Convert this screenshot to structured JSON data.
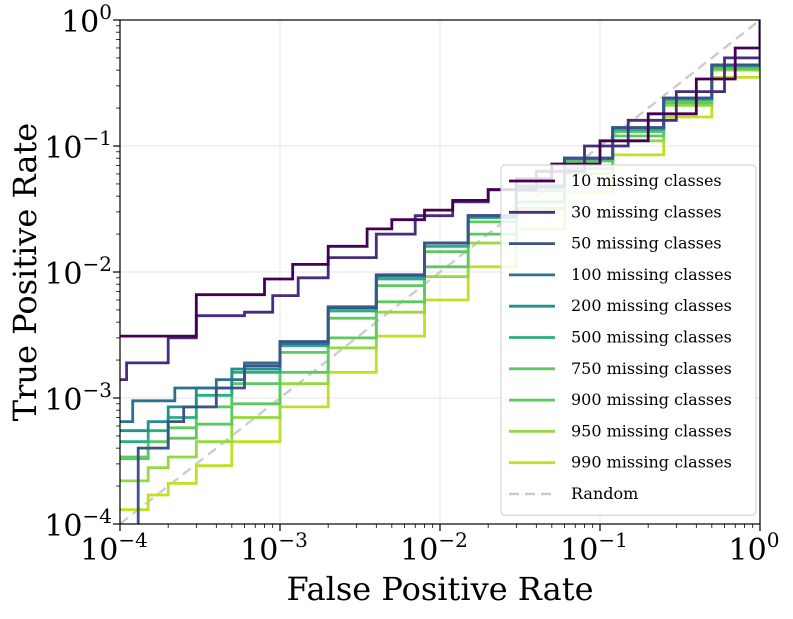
{
  "chart_data": {
    "type": "line",
    "xlabel": "False Positive Rate",
    "ylabel": "True Positive Rate",
    "xscale": "log",
    "yscale": "log",
    "xlim": [
      0.0001,
      1
    ],
    "ylim": [
      0.0001,
      1
    ],
    "grid": true,
    "legend_position": "right",
    "x_ticks": [
      {
        "base": "10",
        "exp": "−4",
        "value": 0.0001
      },
      {
        "base": "10",
        "exp": "−3",
        "value": 0.001
      },
      {
        "base": "10",
        "exp": "−2",
        "value": 0.01
      },
      {
        "base": "10",
        "exp": "−1",
        "value": 0.1
      },
      {
        "base": "10",
        "exp": "0",
        "value": 1
      }
    ],
    "y_ticks": [
      {
        "base": "10",
        "exp": "−4",
        "value": 0.0001
      },
      {
        "base": "10",
        "exp": "−3",
        "value": 0.001
      },
      {
        "base": "10",
        "exp": "−2",
        "value": 0.01
      },
      {
        "base": "10",
        "exp": "−1",
        "value": 0.1
      },
      {
        "base": "10",
        "exp": "0",
        "value": 1
      }
    ],
    "series": [
      {
        "name": "10 missing classes",
        "color": "#440154",
        "points": [
          [
            0.0001,
            0.0031
          ],
          [
            0.0002,
            0.0031
          ],
          [
            0.0003,
            0.0066
          ],
          [
            0.0006,
            0.0066
          ],
          [
            0.0008,
            0.0088
          ],
          [
            0.0012,
            0.0115
          ],
          [
            0.002,
            0.016
          ],
          [
            0.0035,
            0.022
          ],
          [
            0.005,
            0.026
          ],
          [
            0.008,
            0.031
          ],
          [
            0.012,
            0.037
          ],
          [
            0.02,
            0.045
          ],
          [
            0.03,
            0.055
          ],
          [
            0.05,
            0.072
          ],
          [
            0.1,
            0.11
          ],
          [
            0.2,
            0.18
          ],
          [
            0.4,
            0.34
          ],
          [
            0.7,
            0.6
          ],
          [
            1,
            1
          ]
        ]
      },
      {
        "name": "30 missing classes",
        "color": "#472d7b",
        "points": [
          [
            0.0001,
            0.0014
          ],
          [
            0.00011,
            0.0019
          ],
          [
            0.0002,
            0.0019
          ],
          [
            0.0002,
            0.003
          ],
          [
            0.0003,
            0.003
          ],
          [
            0.0003,
            0.0045
          ],
          [
            0.0006,
            0.0048
          ],
          [
            0.0009,
            0.0065
          ],
          [
            0.0013,
            0.009
          ],
          [
            0.002,
            0.013
          ],
          [
            0.004,
            0.02
          ],
          [
            0.007,
            0.028
          ],
          [
            0.012,
            0.036
          ],
          [
            0.02,
            0.045
          ],
          [
            0.04,
            0.063
          ],
          [
            0.08,
            0.1
          ],
          [
            0.15,
            0.16
          ],
          [
            0.3,
            0.27
          ],
          [
            0.6,
            0.5
          ],
          [
            1,
            1
          ]
        ]
      },
      {
        "name": "50 missing classes",
        "color": "#3b528b",
        "points": [
          [
            0.00013,
            7e-05
          ],
          [
            0.00013,
            0.0004
          ],
          [
            0.00016,
            0.0004
          ],
          [
            0.0002,
            0.00065
          ],
          [
            0.00025,
            0.00085
          ],
          [
            0.0004,
            0.0012
          ],
          [
            0.0006,
            0.0018
          ],
          [
            0.001,
            0.0028
          ],
          [
            0.002,
            0.0052
          ],
          [
            0.004,
            0.0095
          ],
          [
            0.008,
            0.017
          ],
          [
            0.015,
            0.028
          ],
          [
            0.03,
            0.048
          ],
          [
            0.06,
            0.08
          ],
          [
            0.12,
            0.14
          ],
          [
            0.25,
            0.24
          ],
          [
            0.5,
            0.44
          ],
          [
            1,
            1
          ]
        ]
      },
      {
        "name": "100 missing classes",
        "color": "#2c728e",
        "points": [
          [
            0.0001,
            0.00065
          ],
          [
            0.00012,
            0.00065
          ],
          [
            0.00012,
            0.00095
          ],
          [
            0.00018,
            0.00095
          ],
          [
            0.00022,
            0.0012
          ],
          [
            0.0004,
            0.0014
          ],
          [
            0.0006,
            0.0019
          ],
          [
            0.001,
            0.0027
          ],
          [
            0.002,
            0.0052
          ],
          [
            0.004,
            0.0093
          ],
          [
            0.008,
            0.017
          ],
          [
            0.015,
            0.028
          ],
          [
            0.03,
            0.048
          ],
          [
            0.06,
            0.08
          ],
          [
            0.12,
            0.14
          ],
          [
            0.25,
            0.24
          ],
          [
            0.5,
            0.44
          ],
          [
            1,
            1
          ]
        ]
      },
      {
        "name": "200 missing classes",
        "color": "#21918c",
        "points": [
          [
            0.0001,
            0.00055
          ],
          [
            0.00015,
            0.00065
          ],
          [
            0.0002,
            0.00085
          ],
          [
            0.0003,
            0.0012
          ],
          [
            0.0005,
            0.0017
          ],
          [
            0.001,
            0.0028
          ],
          [
            0.002,
            0.0053
          ],
          [
            0.004,
            0.0093
          ],
          [
            0.008,
            0.017
          ],
          [
            0.015,
            0.028
          ],
          [
            0.03,
            0.048
          ],
          [
            0.06,
            0.08
          ],
          [
            0.12,
            0.14
          ],
          [
            0.25,
            0.24
          ],
          [
            0.5,
            0.44
          ],
          [
            1,
            1
          ]
        ]
      },
      {
        "name": "500 missing classes",
        "color": "#28ae80",
        "points": [
          [
            0.0001,
            0.00045
          ],
          [
            0.00015,
            0.00055
          ],
          [
            0.0002,
            0.0007
          ],
          [
            0.0003,
            0.00105
          ],
          [
            0.0005,
            0.0016
          ],
          [
            0.001,
            0.0026
          ],
          [
            0.002,
            0.0049
          ],
          [
            0.004,
            0.0088
          ],
          [
            0.008,
            0.016
          ],
          [
            0.015,
            0.027
          ],
          [
            0.03,
            0.047
          ],
          [
            0.06,
            0.079
          ],
          [
            0.12,
            0.135
          ],
          [
            0.25,
            0.235
          ],
          [
            0.5,
            0.43
          ],
          [
            1,
            1
          ]
        ]
      },
      {
        "name": "750 missing classes",
        "color": "#5ec962",
        "points": [
          [
            0.0001,
            0.00034
          ],
          [
            0.00015,
            0.00045
          ],
          [
            0.0002,
            0.00058
          ],
          [
            0.0003,
            0.00085
          ],
          [
            0.0005,
            0.0013
          ],
          [
            0.001,
            0.0023
          ],
          [
            0.002,
            0.0043
          ],
          [
            0.004,
            0.0078
          ],
          [
            0.008,
            0.0145
          ],
          [
            0.015,
            0.025
          ],
          [
            0.03,
            0.044
          ],
          [
            0.06,
            0.076
          ],
          [
            0.12,
            0.13
          ],
          [
            0.25,
            0.23
          ],
          [
            0.5,
            0.42
          ],
          [
            1,
            1
          ]
        ]
      },
      {
        "name": "900 missing classes",
        "color": "#5ec962",
        "points": [
          [
            0.0001,
            0.00033
          ],
          [
            0.00015,
            0.0004
          ],
          [
            0.0002,
            0.00048
          ],
          [
            0.0003,
            0.00062
          ],
          [
            0.0005,
            0.0009
          ],
          [
            0.001,
            0.0016
          ],
          [
            0.002,
            0.003
          ],
          [
            0.004,
            0.0058
          ],
          [
            0.008,
            0.011
          ],
          [
            0.015,
            0.02
          ],
          [
            0.03,
            0.036
          ],
          [
            0.06,
            0.066
          ],
          [
            0.12,
            0.12
          ],
          [
            0.25,
            0.22
          ],
          [
            0.5,
            0.41
          ],
          [
            1,
            1
          ]
        ]
      },
      {
        "name": "950 missing classes",
        "color": "#95d840",
        "points": [
          [
            0.0001,
            0.00022
          ],
          [
            0.00015,
            0.00028
          ],
          [
            0.0002,
            0.00034
          ],
          [
            0.0003,
            0.00045
          ],
          [
            0.0005,
            0.0007
          ],
          [
            0.001,
            0.0013
          ],
          [
            0.002,
            0.0025
          ],
          [
            0.004,
            0.0048
          ],
          [
            0.008,
            0.0092
          ],
          [
            0.015,
            0.017
          ],
          [
            0.03,
            0.032
          ],
          [
            0.06,
            0.06
          ],
          [
            0.12,
            0.11
          ],
          [
            0.25,
            0.21
          ],
          [
            0.5,
            0.4
          ],
          [
            1,
            1
          ]
        ]
      },
      {
        "name": "990 missing classes",
        "color": "#c2df23",
        "points": [
          [
            0.0001,
            0.00013
          ],
          [
            0.00015,
            0.00017
          ],
          [
            0.0002,
            0.00021
          ],
          [
            0.0003,
            0.00029
          ],
          [
            0.0005,
            0.00045
          ],
          [
            0.001,
            0.00085
          ],
          [
            0.002,
            0.0016
          ],
          [
            0.004,
            0.0031
          ],
          [
            0.008,
            0.006
          ],
          [
            0.015,
            0.011
          ],
          [
            0.03,
            0.022
          ],
          [
            0.06,
            0.043
          ],
          [
            0.12,
            0.085
          ],
          [
            0.25,
            0.17
          ],
          [
            0.5,
            0.35
          ],
          [
            1,
            1
          ]
        ]
      },
      {
        "name": "Random",
        "color": "#cccccc",
        "dashed": true,
        "points": [
          [
            0.0001,
            0.0001
          ],
          [
            1,
            1
          ]
        ]
      }
    ]
  }
}
